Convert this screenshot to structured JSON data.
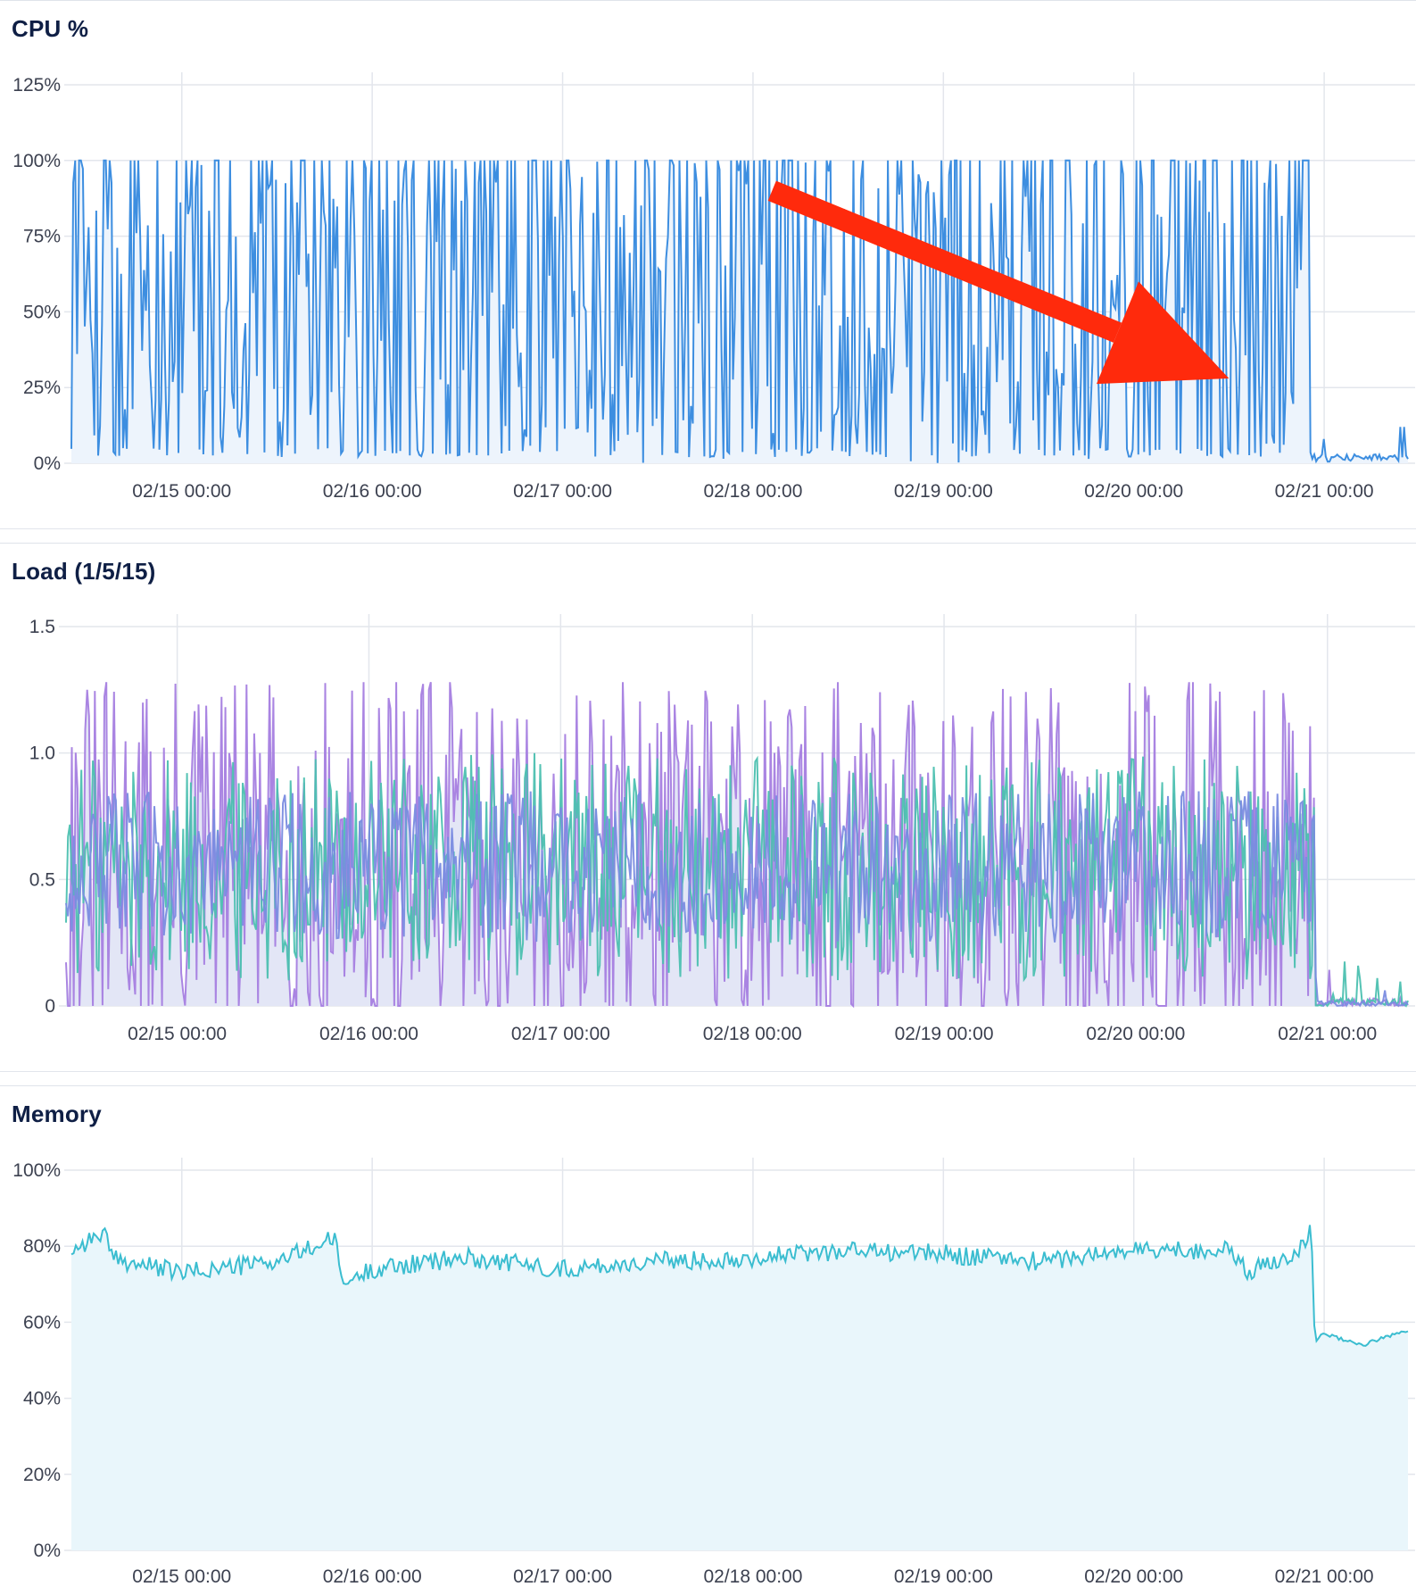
{
  "chart_data": [
    {
      "type": "area",
      "title": "CPU %",
      "xlabel": "",
      "ylabel": "",
      "ylim": [
        0,
        125
      ],
      "y_ticks": [
        "0%",
        "25%",
        "50%",
        "75%",
        "100%",
        "125%"
      ],
      "y_tick_values": [
        0,
        25,
        50,
        75,
        100,
        125
      ],
      "x_ticks": [
        "02/15 00:00",
        "02/16 00:00",
        "02/17 00:00",
        "02/18 00:00",
        "02/19 00:00",
        "02/20 00:00",
        "02/21 00:00"
      ],
      "x_tick_days": [
        1,
        2,
        3,
        4,
        5,
        6,
        7
      ],
      "x_range_days": [
        0.42,
        7.44
      ],
      "grid": true,
      "colors": {
        "line": "#3d8ee0",
        "fill": "#edf4fc"
      },
      "annotation": {
        "type": "arrow",
        "color": "#ff2a0c",
        "from": [
          4.1,
          90
        ],
        "to": [
          6.5,
          28
        ]
      },
      "series": [
        {
          "drop_at_day": 6.93,
          "busy_range": [
            0,
            100
          ],
          "idle_range": [
            0.5,
            3
          ],
          "idle_spikes": [
            [
              7.0,
              8
            ],
            [
              7.4,
              12
            ],
            [
              7.42,
              12
            ]
          ],
          "samples": 700
        }
      ]
    },
    {
      "type": "line",
      "title": "Load (1/5/15)",
      "xlabel": "",
      "ylabel": "",
      "ylim": [
        0,
        1.5
      ],
      "y_ticks": [
        "0",
        "0.5",
        "1.0",
        "1.5"
      ],
      "y_tick_values": [
        0,
        0.5,
        1.0,
        1.5
      ],
      "x_ticks": [
        "02/15 00:00",
        "02/16 00:00",
        "02/17 00:00",
        "02/18 00:00",
        "02/19 00:00",
        "02/20 00:00",
        "02/21 00:00"
      ],
      "x_tick_days": [
        1,
        2,
        3,
        4,
        5,
        6,
        7
      ],
      "x_range_days": [
        0.42,
        7.42
      ],
      "grid": true,
      "colors": {
        "fill": "#e3e6f6"
      },
      "series": [
        {
          "color": "#a57ee0",
          "mean": 0.55,
          "amplitude": 0.75,
          "samples": 700,
          "drop_at_day": 6.93,
          "tail": 0.03
        },
        {
          "color": "#4cc0b0",
          "mean": 0.55,
          "amplitude": 0.45,
          "samples": 700,
          "drop_at_day": 6.93,
          "tail": 0.03
        },
        {
          "color": "#7a8ce0",
          "mean": 0.55,
          "amplitude": 0.3,
          "samples": 700,
          "drop_at_day": 6.93,
          "tail": 0.02
        }
      ]
    },
    {
      "type": "area",
      "title": "Memory",
      "xlabel": "",
      "ylabel": "",
      "ylim": [
        0,
        100
      ],
      "y_ticks": [
        "0%",
        "20%",
        "40%",
        "60%",
        "80%",
        "100%"
      ],
      "y_tick_values": [
        0,
        20,
        40,
        60,
        80,
        100
      ],
      "x_ticks": [
        "02/15 00:00",
        "02/16 00:00",
        "02/17 00:00",
        "02/18 00:00",
        "02/19 00:00",
        "02/20 00:00",
        "02/21 00:00"
      ],
      "x_tick_days": [
        1,
        2,
        3,
        4,
        5,
        6,
        7
      ],
      "x_range_days": [
        0.42,
        7.44
      ],
      "grid": true,
      "colors": {
        "line": "#3bbdd0",
        "fill": "#e9f6fb"
      },
      "series": [
        {
          "x_days": [
            0.42,
            0.6,
            0.62,
            0.8,
            1.0,
            1.5,
            1.8,
            1.85,
            2.0,
            2.5,
            3.0,
            3.5,
            4.0,
            4.5,
            5.0,
            5.5,
            6.0,
            6.5,
            6.6,
            6.9,
            6.93,
            6.95,
            7.0,
            7.2,
            7.44
          ],
          "values": [
            79,
            84,
            77,
            75,
            73,
            76,
            82,
            70,
            74,
            77,
            74,
            76,
            77,
            79,
            78,
            76,
            79,
            79,
            73,
            80,
            89,
            55,
            57,
            54,
            58
          ],
          "noise": 2.5
        }
      ]
    }
  ]
}
